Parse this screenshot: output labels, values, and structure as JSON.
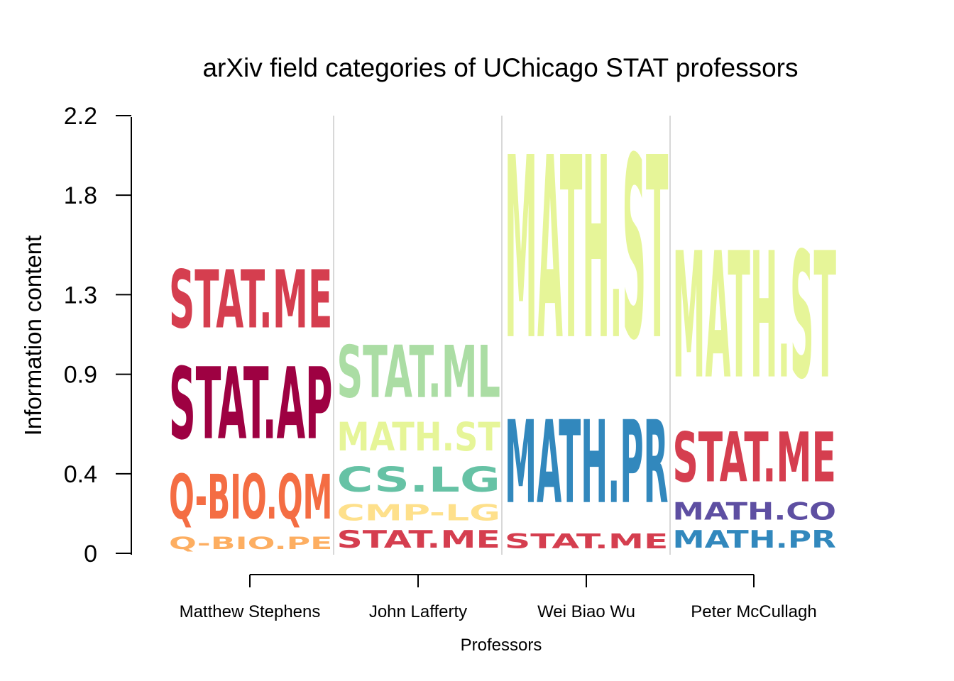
{
  "chart_data": {
    "type": "stacked-logo",
    "title": "arXiv field categories of UChicago STAT professors",
    "xlabel": "Professors",
    "ylabel": "Information content",
    "ylim": [
      0,
      2.2
    ],
    "yticks": [
      "0",
      "0.4",
      "0.9",
      "1.3",
      "1.8",
      "2.2"
    ],
    "categories": [
      "Matthew Stephens",
      "John Lafferty",
      "Wei Biao Wu",
      "Peter McCullagh"
    ],
    "stacks": [
      {
        "professor": "Matthew Stephens",
        "segments": [
          {
            "label": "Q-BIO.PE",
            "value": 0.1,
            "color": "#FDAE61"
          },
          {
            "label": "Q-BIO.QM",
            "value": 0.36,
            "color": "#F46D43"
          },
          {
            "label": "STAT.AP",
            "value": 0.58,
            "color": "#9E0142"
          },
          {
            "label": "STAT.ME",
            "value": 0.47,
            "color": "#D53E4F"
          }
        ]
      },
      {
        "professor": "John Lafferty",
        "segments": [
          {
            "label": "STAT.ME",
            "value": 0.14,
            "color": "#D53E4F"
          },
          {
            "label": "CMP-LG",
            "value": 0.13,
            "color": "#FEE08B"
          },
          {
            "label": "CS.LG",
            "value": 0.2,
            "color": "#66C2A5"
          },
          {
            "label": "MATH.ST",
            "value": 0.23,
            "color": "#E6F598"
          },
          {
            "label": "STAT.ML",
            "value": 0.42,
            "color": "#ABDDA4"
          }
        ]
      },
      {
        "professor": "Wei Biao Wu",
        "segments": [
          {
            "label": "STAT.ME",
            "value": 0.12,
            "color": "#D53E4F"
          },
          {
            "label": "MATH.PR",
            "value": 0.67,
            "color": "#3288BD"
          },
          {
            "label": "MATH.ST",
            "value": 1.47,
            "color": "#E6F598"
          }
        ]
      },
      {
        "professor": "Peter McCullagh",
        "segments": [
          {
            "label": "MATH.PR",
            "value": 0.14,
            "color": "#3288BD"
          },
          {
            "label": "MATH.CO",
            "value": 0.14,
            "color": "#5E4FA2"
          },
          {
            "label": "STAT.ME",
            "value": 0.4,
            "color": "#D53E4F"
          },
          {
            "label": "MATH.ST",
            "value": 1.02,
            "color": "#E6F598"
          }
        ]
      }
    ]
  }
}
